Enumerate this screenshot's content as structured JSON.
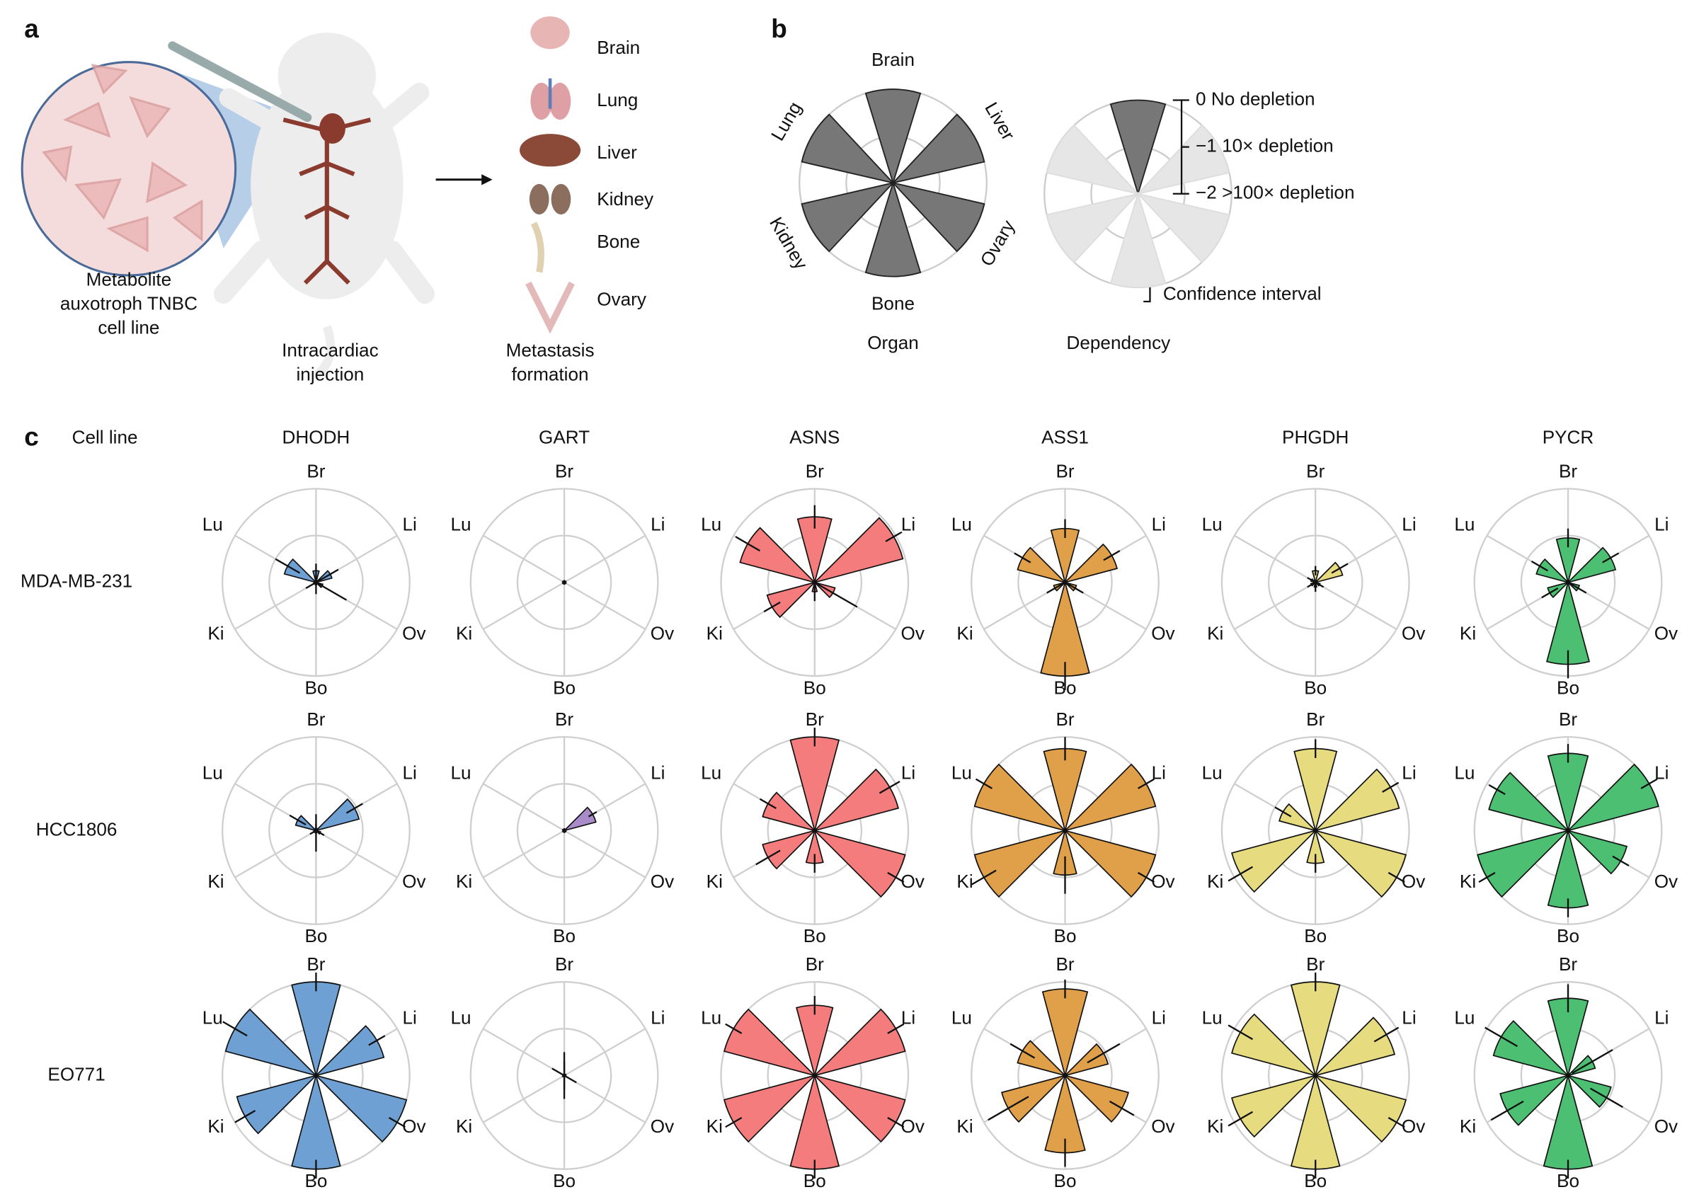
{
  "panel_a": {
    "label": "a",
    "cell_line": [
      "Metabolite",
      "auxotroph TNBC",
      "cell line"
    ],
    "injection": [
      "Intracardiac",
      "injection"
    ],
    "formation": [
      "Metastasis",
      "formation"
    ],
    "organs": [
      "Brain",
      "Lung",
      "Liver",
      "Kidney",
      "Bone",
      "Ovary"
    ]
  },
  "panel_b": {
    "label": "b",
    "organ_labels": [
      "Brain",
      "Liver",
      "Ovary",
      "Bone",
      "Kidney",
      "Lung"
    ],
    "organ_title": "Organ",
    "dependency_title": "Dependency",
    "rlim": [
      -2,
      0
    ],
    "organ_values": [
      0,
      0,
      0,
      0,
      0,
      0
    ],
    "organ_color": "#777777",
    "example_values": [
      0,
      0,
      0,
      0,
      0,
      0
    ],
    "example_colors": [
      "#777777",
      "#e6e6e6",
      "#e6e6e6",
      "#e6e6e6",
      "#e6e6e6",
      "#e6e6e6"
    ],
    "legend_ticks": [
      {
        "value": 0,
        "label": "0 No depletion"
      },
      {
        "value": -1,
        "label": "−1 10× depletion"
      },
      {
        "value": -2,
        "label": "−2 >100× depletion"
      }
    ],
    "ci_label": "Confidence interval"
  },
  "chart_data": {
    "type": "polar_bar",
    "label": "c",
    "row_header": "Cell line",
    "columns": [
      {
        "name": "DHODH",
        "color": "#6fa0d4"
      },
      {
        "name": "GART",
        "color": "#a98bc9"
      },
      {
        "name": "ASNS",
        "color": "#f47c7c"
      },
      {
        "name": "ASS1",
        "color": "#e0a04a"
      },
      {
        "name": "PHGDH",
        "color": "#e6dc7f"
      },
      {
        "name": "PYCR",
        "color": "#4cbf72"
      }
    ],
    "rows": [
      "MDA-MB-231",
      "HCC1806",
      "EO771"
    ],
    "categories": [
      "Br",
      "Li",
      "Ov",
      "Bo",
      "Ki",
      "Lu"
    ],
    "rlim": [
      -2,
      0
    ],
    "rticks": [
      -1,
      0
    ],
    "grid": true,
    "values": [
      [
        [
          -1.75,
          -1.65,
          -1.85,
          -1.95,
          -1.95,
          -1.3
        ],
        [
          -2,
          -2,
          -2,
          -2,
          -2,
          -2
        ],
        [
          -0.6,
          -0.05,
          -1.55,
          -1.8,
          -0.95,
          -0.35
        ],
        [
          -0.85,
          -0.85,
          -1.75,
          0,
          -1.75,
          -0.95
        ],
        [
          -1.75,
          -1.4,
          -1.9,
          -1.9,
          -1.9,
          -1.9
        ],
        [
          -1.05,
          -0.95,
          -1.75,
          -0.25,
          -1.55,
          -1.3
        ]
      ],
      [
        [
          -1.95,
          -1.05,
          -1.9,
          -1.95,
          -1.95,
          -1.55
        ],
        [
          -2,
          -1.3,
          -2,
          -2,
          -2,
          -2
        ],
        [
          0,
          -0.15,
          0,
          -1.3,
          -0.85,
          -0.85
        ],
        [
          -0.25,
          0,
          0,
          -1.05,
          0,
          0
        ],
        [
          -0.25,
          -0.15,
          0,
          -1.3,
          -0.15,
          -1.2
        ],
        [
          -0.35,
          0,
          -0.7,
          -0.35,
          0,
          -0.25
        ]
      ],
      [
        [
          0,
          -0.5,
          0,
          0,
          -0.25,
          0
        ],
        [
          -2,
          -2,
          -2,
          -2,
          -2,
          -2
        ],
        [
          -0.5,
          0,
          0,
          0,
          0,
          0
        ],
        [
          -0.15,
          -1.05,
          -0.6,
          -0.35,
          -0.6,
          -0.95
        ],
        [
          0,
          -0.25,
          0,
          0,
          -0.15,
          -0.15
        ],
        [
          -0.35,
          -1.4,
          -1.05,
          0,
          -0.5,
          -0.35
        ]
      ]
    ],
    "ci": [
      [
        [
          0.15,
          0.2,
          0.6,
          0.2,
          0.2,
          0.3
        ],
        [
          0.05,
          0.05,
          0.05,
          0.05,
          0.05,
          0.05
        ],
        [
          0.25,
          0.2,
          0.6,
          0.2,
          0.2,
          0.3
        ],
        [
          0.2,
          0.2,
          0.2,
          0.3,
          0.2,
          0.2
        ],
        [
          0.1,
          0.2,
          0.1,
          0.1,
          0.1,
          0.1
        ],
        [
          0.2,
          0.2,
          0.2,
          0.3,
          0.2,
          0.2
        ]
      ],
      [
        [
          0.1,
          0.2,
          0.1,
          0.4,
          0.1,
          0.2
        ],
        [
          0.05,
          0.1,
          0.05,
          0.05,
          0.05,
          0.05
        ],
        [
          0.2,
          0.25,
          0.2,
          0.2,
          0.3,
          0.2
        ],
        [
          0.25,
          0.2,
          0.2,
          0.4,
          0.3,
          0.2
        ],
        [
          0.2,
          0.2,
          0.2,
          0.2,
          0.3,
          0.2
        ],
        [
          0.2,
          0.2,
          0.2,
          0.2,
          0.2,
          0.2
        ]
      ],
      [
        [
          0.2,
          0.2,
          0.2,
          0.2,
          0.25,
          0.3
        ],
        [
          0.3,
          0.05,
          0.05,
          0.5,
          0.05,
          0.3
        ],
        [
          0.2,
          0.2,
          0.2,
          0.2,
          0.2,
          0.2
        ],
        [
          0.2,
          0.4,
          0.3,
          0.3,
          0.5,
          0.3
        ],
        [
          0.2,
          0.3,
          0.2,
          0.2,
          0.3,
          0.3
        ],
        [
          0.3,
          0.5,
          0.4,
          0.2,
          0.4,
          0.4
        ]
      ]
    ]
  }
}
